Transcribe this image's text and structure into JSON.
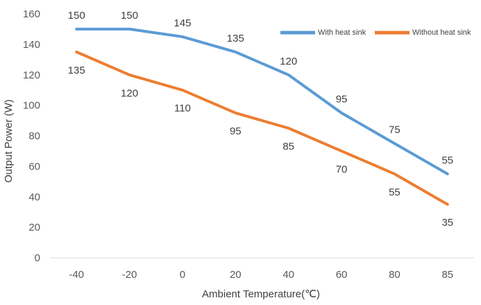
{
  "chart_data": {
    "type": "line",
    "title": "",
    "xlabel": "Ambient Temperature(℃)",
    "ylabel": "Output Power (W)",
    "categories": [
      "-40",
      "-20",
      "0",
      "20",
      "40",
      "60",
      "80",
      "85"
    ],
    "ylim": [
      0,
      160
    ],
    "yticks": [
      0,
      20,
      40,
      60,
      80,
      100,
      120,
      140,
      160
    ],
    "grid": false,
    "legend": "top-right",
    "series": [
      {
        "name": "With heat sink",
        "color": "#5B9BD5",
        "values": [
          150,
          150,
          145,
          135,
          120,
          95,
          75,
          55
        ],
        "label_position": "above"
      },
      {
        "name": "Without heat sink",
        "color": "#ED7D31",
        "values": [
          135,
          120,
          110,
          95,
          85,
          70,
          55,
          35
        ],
        "label_position": "below"
      }
    ]
  }
}
